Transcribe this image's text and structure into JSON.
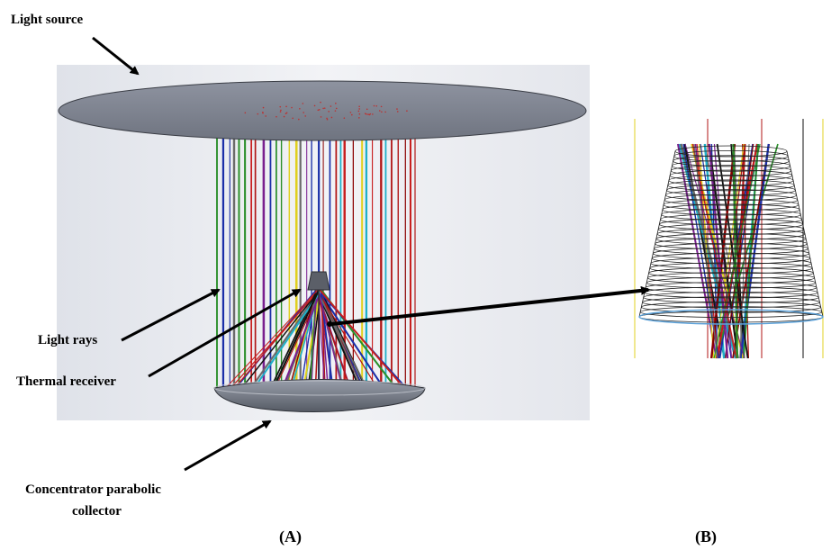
{
  "labels": {
    "light_source": "Light source",
    "light_rays": "Light rays",
    "thermal_receiver": "Thermal receiver",
    "concentrator_line1": "Concentrator parabolic",
    "concentrator_line2": "collector"
  },
  "captions": {
    "panel_a": "(A)",
    "panel_b": "(B)"
  },
  "colors": {
    "disk_fill": "#858a96",
    "disk_edge": "#3a3d45",
    "background_panel": "#e9ebf0",
    "arrow": "#000000",
    "ray_palette": [
      "#b01414",
      "#c81e1e",
      "#8b0000",
      "#1b2fa8",
      "#2a8f2a",
      "#111111",
      "#7a1f8f",
      "#e0d020",
      "#1fb0c8",
      "#6b6b6b"
    ]
  }
}
